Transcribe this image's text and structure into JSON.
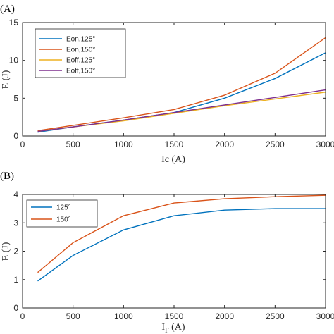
{
  "chart_data": [
    {
      "type": "line",
      "panel_label": "(A)",
      "xlabel": "Ic (A)",
      "ylabel": "E (J)",
      "xlim": [
        0,
        3000
      ],
      "ylim": [
        0,
        15
      ],
      "xticks": [
        0,
        500,
        1000,
        1500,
        2000,
        2500,
        3000
      ],
      "yticks": [
        0,
        5,
        10,
        15
      ],
      "grid": false,
      "legend_position": "top-left",
      "x": [
        150,
        500,
        1000,
        1500,
        2000,
        2500,
        3000
      ],
      "series": [
        {
          "name": "Eon,125°",
          "color": "#0072BD",
          "values": [
            0.5,
            1.2,
            2.1,
            3.1,
            5.0,
            7.6,
            11.0
          ]
        },
        {
          "name": "Eon,150°",
          "color": "#D95319",
          "values": [
            0.7,
            1.4,
            2.4,
            3.5,
            5.4,
            8.3,
            13.0
          ]
        },
        {
          "name": "Eoff,125°",
          "color": "#EDB120",
          "values": [
            0.6,
            1.2,
            2.0,
            3.0,
            4.0,
            4.9,
            5.8
          ]
        },
        {
          "name": "Eoff,150°",
          "color": "#7E2F8E",
          "values": [
            0.6,
            1.2,
            2.1,
            3.1,
            4.1,
            5.1,
            6.1
          ]
        }
      ]
    },
    {
      "type": "line",
      "panel_label": "(B)",
      "xlabel_main": "I",
      "xlabel_sub": "F",
      "xlabel_unit": " (A)",
      "ylabel": "E (J)",
      "xlim": [
        0,
        3000
      ],
      "ylim": [
        0,
        4
      ],
      "xticks": [
        0,
        500,
        1000,
        1500,
        2000,
        2500,
        3000
      ],
      "yticks": [
        0,
        1,
        2,
        3,
        4
      ],
      "grid": false,
      "legend_position": "top-left",
      "x": [
        150,
        500,
        1000,
        1500,
        2000,
        2500,
        3000
      ],
      "series": [
        {
          "name": "125°",
          "color": "#0072BD",
          "values": [
            0.95,
            1.85,
            2.75,
            3.25,
            3.45,
            3.5,
            3.5
          ]
        },
        {
          "name": "150°",
          "color": "#D95319",
          "values": [
            1.25,
            2.3,
            3.25,
            3.7,
            3.85,
            3.92,
            3.97
          ]
        }
      ]
    }
  ]
}
